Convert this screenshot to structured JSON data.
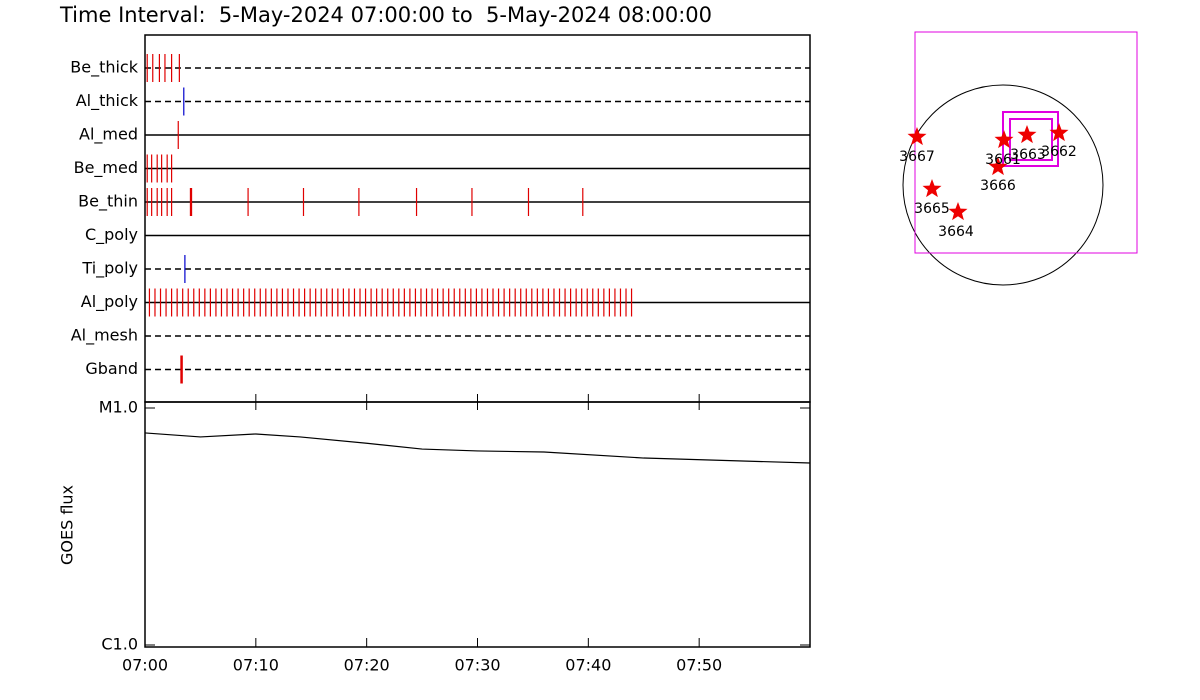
{
  "title": "Time Interval:  5-May-2024 07:00:00 to  5-May-2024 08:00:00",
  "chart_data": [
    {
      "type": "events",
      "xlim": [
        0,
        60
      ],
      "rows": [
        {
          "name": "Be_thick",
          "style": "dashed",
          "color": "#e00000",
          "times": [
            0.2,
            0.7,
            1.3,
            1.8,
            2.4,
            3.1
          ]
        },
        {
          "name": "Al_thick",
          "style": "dashed",
          "color": "#0000cc",
          "times": [
            3.5
          ]
        },
        {
          "name": "Al_med",
          "style": "solid",
          "color": "#e00000",
          "times": [
            3.0
          ]
        },
        {
          "name": "Be_med",
          "style": "solid",
          "color": "#e00000",
          "times": [
            0.2,
            0.6,
            1.1,
            1.5,
            2.0,
            2.4
          ]
        },
        {
          "name": "Be_thin",
          "style": "solid",
          "color": "#e00000",
          "times": [
            0.2,
            0.6,
            1.1,
            1.5,
            2.0,
            2.4,
            4.1,
            4.2,
            9.3,
            14.3,
            19.3,
            24.5,
            29.5,
            34.6,
            39.5
          ]
        },
        {
          "name": "C_poly",
          "style": "solid",
          "color": "#e00000",
          "times": []
        },
        {
          "name": "Ti_poly",
          "style": "dashed",
          "color": "#0000cc",
          "times": [
            3.6
          ]
        },
        {
          "name": "Al_poly",
          "style": "solid",
          "color": "#e00000",
          "times": [
            0.4,
            0.9,
            1.4,
            1.9,
            2.4,
            2.9,
            3.4,
            3.9,
            4.4,
            4.9,
            5.4,
            5.9,
            6.4,
            6.9,
            7.4,
            7.9,
            8.4,
            8.9,
            9.4,
            9.9,
            10.4,
            10.9,
            11.4,
            11.9,
            12.4,
            12.9,
            13.4,
            13.9,
            14.4,
            14.9,
            15.4,
            15.9,
            16.4,
            16.9,
            17.4,
            17.9,
            18.4,
            18.9,
            19.4,
            19.9,
            20.4,
            20.9,
            21.4,
            21.9,
            22.4,
            22.9,
            23.4,
            23.9,
            24.4,
            24.9,
            25.4,
            25.9,
            26.4,
            26.9,
            27.4,
            27.9,
            28.4,
            28.9,
            29.4,
            29.9,
            30.4,
            30.9,
            31.4,
            31.9,
            32.4,
            32.9,
            33.4,
            33.9,
            34.4,
            34.9,
            35.4,
            35.9,
            36.4,
            36.9,
            37.4,
            37.9,
            38.4,
            38.9,
            39.4,
            39.9,
            40.4,
            40.9,
            41.4,
            41.9,
            42.4,
            42.9,
            43.4,
            43.9
          ]
        },
        {
          "name": "Al_mesh",
          "style": "dashed",
          "color": "#e00000",
          "times": []
        },
        {
          "name": "Gband",
          "style": "dashed",
          "color": "#e00000",
          "times": [
            3.3
          ]
        }
      ]
    },
    {
      "type": "line",
      "ylabel": "GOES flux",
      "log_scale": true,
      "color": "#000000",
      "xlim": [
        0,
        60
      ],
      "ylim": [
        1e-06,
        1e-05
      ],
      "xticks": [
        {
          "value": 0,
          "label": "07:00"
        },
        {
          "value": 10,
          "label": "07:10"
        },
        {
          "value": 20,
          "label": "07:20"
        },
        {
          "value": 30,
          "label": "07:30"
        },
        {
          "value": 40,
          "label": "07:40"
        },
        {
          "value": 50,
          "label": "07:50"
        }
      ],
      "yticks": [
        {
          "value": 1e-05,
          "label": "M1.0"
        },
        {
          "value": 1e-06,
          "label": "C1.0"
        }
      ],
      "x": [
        0,
        5,
        10,
        14,
        20,
        25,
        30,
        36,
        45,
        60
      ],
      "values": [
        7.85e-06,
        7.55e-06,
        7.77e-06,
        7.55e-06,
        7.1e-06,
        6.71e-06,
        6.59e-06,
        6.52e-06,
        6.15e-06,
        5.86e-06
      ]
    }
  ],
  "map": {
    "regions": [
      {
        "label": "3667"
      },
      {
        "label": "3665"
      },
      {
        "label": "3664"
      },
      {
        "label": "3666"
      },
      {
        "label": "3661"
      },
      {
        "label": "3663"
      },
      {
        "label": "3662"
      }
    ]
  }
}
